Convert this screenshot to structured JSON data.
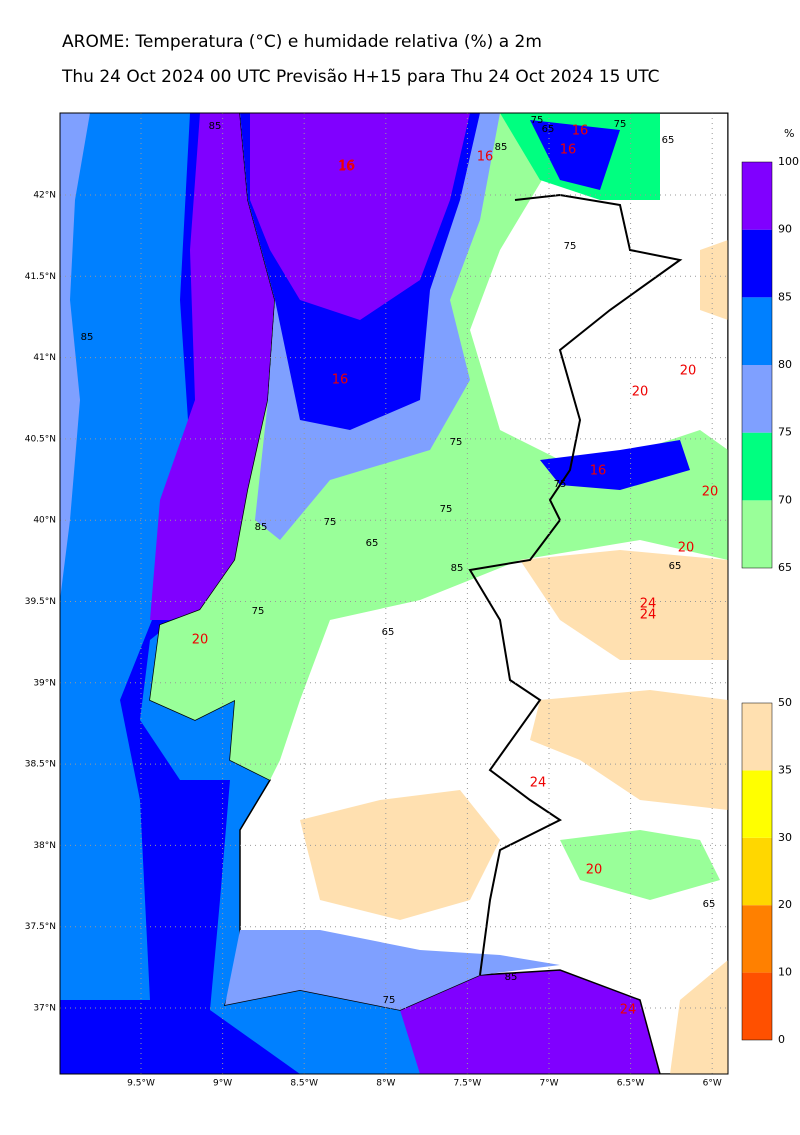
{
  "title": "AROME: Temperatura (°C) e humidade relativa (%) a 2m",
  "subtitle": "Thu 24 Oct 2024 00 UTC Previsão H+15 para Thu 24 Oct 2024 15 UTC",
  "lat_labels": [
    "42°N",
    "41.5°N",
    "41°N",
    "40.5°N",
    "40°N",
    "39.5°N",
    "39°N",
    "38.5°N",
    "38°N",
    "37.5°N",
    "37°N"
  ],
  "lon_labels": [
    "9.5°W",
    "9°W",
    "8.5°W",
    "8°W",
    "7.5°W",
    "7°W",
    "6.5°W",
    "6°W"
  ],
  "humidity_colorbar": {
    "unit": "%",
    "ticks": [
      65,
      70,
      75,
      80,
      85,
      90,
      100
    ],
    "colors": [
      "#99ff99",
      "#00ff80",
      "#7fa0ff",
      "#0080ff",
      "#0000ff",
      "#8000ff"
    ]
  },
  "temperature_colorbar": {
    "ticks": [
      0,
      10,
      20,
      30,
      35,
      50
    ],
    "colors": [
      "#ff5000",
      "#ff8000",
      "#ffd700",
      "#ffff00",
      "#ffe0b0"
    ]
  },
  "contour_labels": [
    "85",
    "75",
    "65",
    "16",
    "75",
    "85",
    "16",
    "65",
    "75",
    "85",
    "16",
    "16",
    "16",
    "75",
    "16",
    "75",
    "20",
    "20",
    "20",
    "85",
    "75",
    "75",
    "65",
    "65",
    "20",
    "65",
    "24",
    "24",
    "85",
    "75",
    "24",
    "20",
    "65",
    "85",
    "75",
    "24",
    "16",
    "20"
  ]
}
